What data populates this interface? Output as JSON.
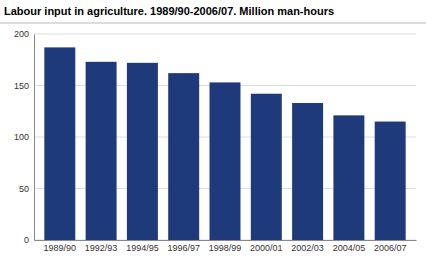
{
  "chart_data": {
    "type": "bar",
    "title": "Labour input in agriculture. 1989/90-2006/07. Million man-hours",
    "categories": [
      "1989/90",
      "1992/93",
      "1994/95",
      "1996/97",
      "1998/99",
      "2000/01",
      "2002/03",
      "2004/05",
      "2006/07"
    ],
    "values": [
      187,
      173,
      172,
      162,
      153,
      142,
      133,
      121,
      115
    ],
    "color": "#1F3A7A",
    "ylim": [
      0,
      200
    ],
    "yticks": [
      0,
      50,
      100,
      150,
      200
    ],
    "grid": true
  }
}
